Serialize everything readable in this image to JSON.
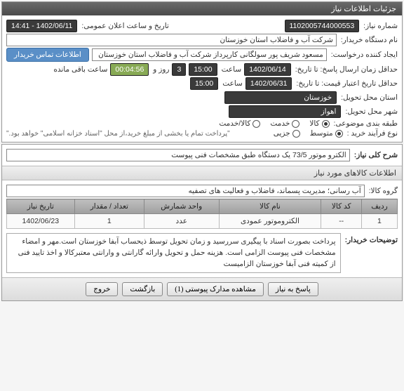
{
  "header": {
    "title": "جزئیات اطلاعات نیاز"
  },
  "info": {
    "req_no_label": "شماره نیاز:",
    "req_no": "1102005744000553",
    "pub_dt_label": "تاریخ و ساعت اعلان عمومی:",
    "pub_dt": "1402/06/11 - 14:41",
    "buyer_label": "نام دستگاه خریدار:",
    "buyer": "شرکت آب و فاضلاب استان خوزستان",
    "creator_label": "ایجاد کننده درخواست:",
    "creator": "مسعود شریف پور سولگانی کارپرداز شرکت آب و فاضلاب استان خوزستان",
    "contact_btn": "اطلاعات تماس خریدار",
    "deadline_label": "حداقل زمان ارسال پاسخ: تا تاریخ:",
    "deadline_date": "1402/06/14",
    "hour_label": "ساعت",
    "deadline_hour": "15:00",
    "day_label": "روز و",
    "days": "3",
    "timer": "00:04:56",
    "remaining": "ساعت باقی مانده",
    "validity_label": "حداقل تاریخ اعتبار قیمت: تا تاریخ:",
    "validity_date": "1402/06/31",
    "validity_hour": "15:00",
    "province_label": "استان محل تحویل:",
    "province": "خوزستان",
    "city_label": "شهر محل تحویل:",
    "city": "اهواز",
    "cat_label": "طبقه بندی موضوعی:",
    "cat_opts": [
      {
        "label": "کالا",
        "selected": true
      },
      {
        "label": "خدمت",
        "selected": false
      },
      {
        "label": "کالا/خدمت",
        "selected": false
      }
    ],
    "proc_label": "نوع فرآیند خرید :",
    "proc_opts": [
      {
        "label": "متوسط",
        "selected": true
      },
      {
        "label": "جزیی",
        "selected": false
      }
    ],
    "proc_note": "\"پرداخت تمام یا بخشی از مبلغ خرید،از محل \"اسناد خزانه اسلامی\" خواهد بود.\""
  },
  "need": {
    "title_label": "شرح کلی نیاز:",
    "title": "الکترو موتور 73/5 یک دستگاه طبق مشخصات فنی پیوست"
  },
  "goods": {
    "section": "اطلاعات کالاهای مورد نیاز",
    "group_label": "گروه کالا:",
    "group": "آب رسانی؛ مدیریت پسماند، فاضلاب و فعالیت های تصفیه",
    "columns": [
      "ردیف",
      "کد کالا",
      "نام کالا",
      "واحد شمارش",
      "تعداد / مقدار",
      "تاریخ نیاز"
    ],
    "rows": [
      [
        "1",
        "--",
        "الکتروموتور عمودی",
        "عدد",
        "1",
        "1402/06/23"
      ]
    ]
  },
  "buyer_note": {
    "label": "توضیحات خریدار:",
    "text": "پرداخت بصورت اسناد با پیگیری  سررسید و زمان تحویل توسط ذیحساب آبفا خوزستان است.مهر و امضاء مشخصات فنی پیوست الزامی است. هزینه حمل و تحویل وارائه گارانتی و وارانتی معتبرکالا و اخذ تایید فنی از کمیته فنی آبفا خوزستان الزامیست"
  },
  "footer": {
    "respond": "پاسخ به نیاز",
    "attachments": "مشاهده مدارک پیوستی (1)",
    "back": "بازگشت",
    "exit": "خروج"
  }
}
